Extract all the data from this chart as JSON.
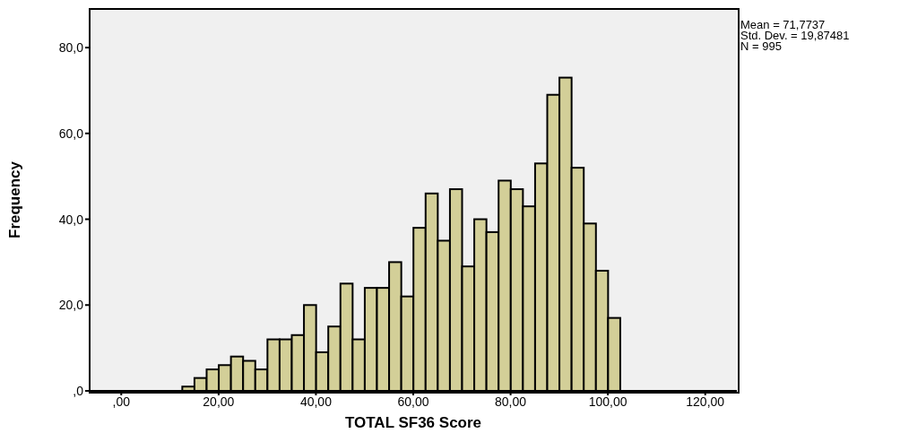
{
  "chart_data": {
    "type": "histogram",
    "xlabel": "TOTAL SF36 Score",
    "ylabel": "Frequency",
    "bins": [
      12.5,
      15,
      17.5,
      20,
      22.5,
      25,
      27.5,
      30,
      32.5,
      35,
      37.5,
      40,
      42.5,
      45,
      47.5,
      50,
      52.5,
      55,
      57.5,
      60,
      62.5,
      65,
      67.5,
      70,
      72.5,
      75,
      77.5,
      80,
      82.5,
      85,
      87.5,
      90,
      92.5,
      95,
      97.5,
      100,
      102.5
    ],
    "values": [
      1,
      3,
      5,
      6,
      8,
      7,
      5,
      12,
      12,
      13,
      20,
      9,
      15,
      25,
      12,
      24,
      24,
      30,
      22,
      38,
      46,
      35,
      47,
      29,
      40,
      37,
      49,
      47,
      43,
      53,
      69,
      73,
      52,
      39,
      28,
      17
    ],
    "color": "#d3cf98",
    "xlim": [
      -6.5,
      126.5
    ],
    "xticks": [
      {
        "value": 0,
        "label": ",00"
      },
      {
        "value": 20,
        "label": "20,00"
      },
      {
        "value": 40,
        "label": "40,00"
      },
      {
        "value": 60,
        "label": "60,00"
      },
      {
        "value": 80,
        "label": "80,00"
      },
      {
        "value": 100,
        "label": "100,00"
      },
      {
        "value": 120,
        "label": "120,00"
      }
    ],
    "ylim": [
      0,
      89
    ],
    "yticks": [
      {
        "value": 0,
        "label": ",0"
      },
      {
        "value": 20,
        "label": "20,0"
      },
      {
        "value": 40,
        "label": "40,0"
      },
      {
        "value": 60,
        "label": "60,0"
      },
      {
        "value": 80,
        "label": "80,0"
      }
    ],
    "annotations": [
      "Mean = 71,7737",
      "Std. Dev. = 19,87481",
      "N = 995"
    ],
    "grid": false
  }
}
